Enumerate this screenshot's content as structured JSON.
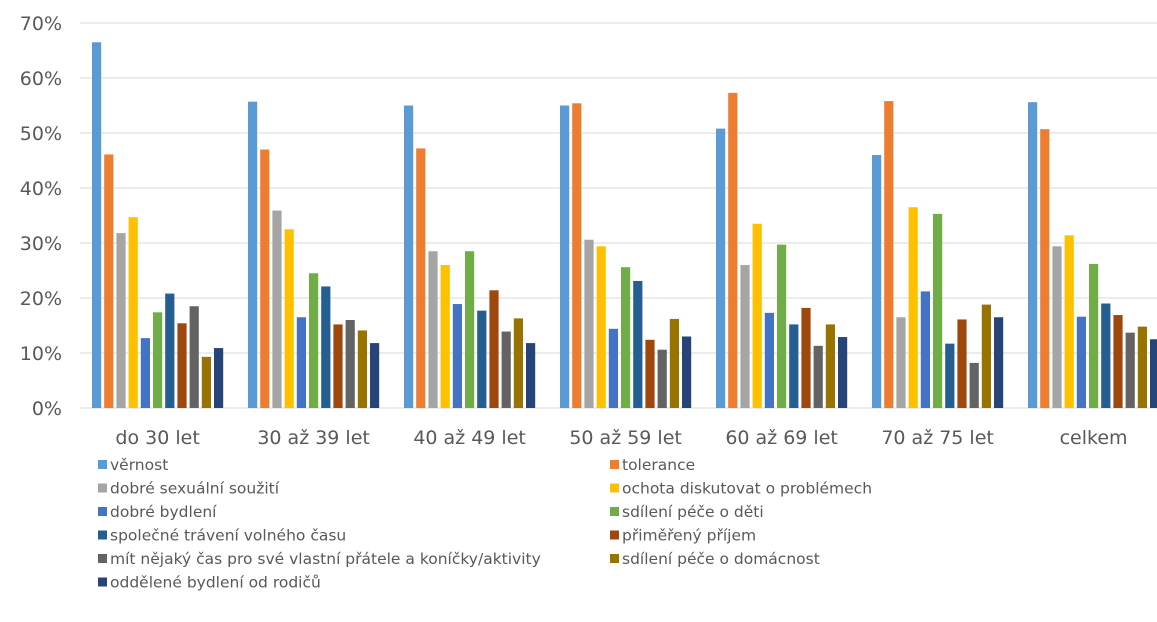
{
  "chart_data": {
    "type": "bar",
    "title": "",
    "xlabel": "",
    "ylabel": "",
    "ylim": [
      0,
      70
    ],
    "yticks": [
      "0%",
      "10%",
      "20%",
      "30%",
      "40%",
      "50%",
      "60%",
      "70%"
    ],
    "grid": "horizontal",
    "legend_position": "bottom",
    "categories": [
      "do 30 let",
      "30 až 39 let",
      "40 až 49 let",
      "50 až 59 let",
      "60 až 69 let",
      "70 až 75 let",
      "celkem"
    ],
    "series": [
      {
        "name": "věrnost",
        "color": "#5b9bd5",
        "values": [
          66.5,
          55.7,
          55.0,
          55.0,
          50.8,
          46.0,
          55.6
        ]
      },
      {
        "name": "tolerance",
        "color": "#ed7d31",
        "values": [
          46.1,
          47.0,
          47.2,
          55.4,
          57.3,
          55.8,
          50.7
        ]
      },
      {
        "name": "dobré sexuální soužití",
        "color": "#a5a5a5",
        "values": [
          31.8,
          35.9,
          28.5,
          30.6,
          26.0,
          16.5,
          29.4
        ]
      },
      {
        "name": "ochota diskutovat o problémech",
        "color": "#ffc000",
        "values": [
          34.7,
          32.5,
          26.0,
          29.4,
          33.5,
          36.5,
          31.4
        ]
      },
      {
        "name": "dobré bydlení",
        "color": "#4472c4",
        "values": [
          12.7,
          16.5,
          18.9,
          14.4,
          17.3,
          21.2,
          16.6
        ]
      },
      {
        "name": "sdílení péče o děti",
        "color": "#70ad47",
        "values": [
          17.4,
          24.5,
          28.5,
          25.6,
          29.7,
          35.3,
          26.2
        ]
      },
      {
        "name": "společné trávení volného času",
        "color": "#255e91",
        "values": [
          20.8,
          22.1,
          17.7,
          23.1,
          15.2,
          11.7,
          19.0
        ]
      },
      {
        "name": "přiměřený příjem",
        "color": "#9e480e",
        "values": [
          15.4,
          15.2,
          21.4,
          12.4,
          18.2,
          16.1,
          16.9
        ]
      },
      {
        "name": "mít nějaký čas pro své vlastní přátele a koníčky/aktivity",
        "color": "#636363",
        "values": [
          18.5,
          16.0,
          13.9,
          10.6,
          11.3,
          8.2,
          13.7
        ]
      },
      {
        "name": "sdílení péče o domácnost",
        "color": "#997300",
        "values": [
          9.3,
          14.1,
          16.3,
          16.2,
          15.2,
          18.8,
          14.8
        ]
      },
      {
        "name": "oddělené bydlení od rodičů",
        "color": "#264478",
        "values": [
          10.9,
          11.8,
          11.8,
          13.0,
          12.9,
          16.5,
          12.5
        ]
      }
    ]
  }
}
